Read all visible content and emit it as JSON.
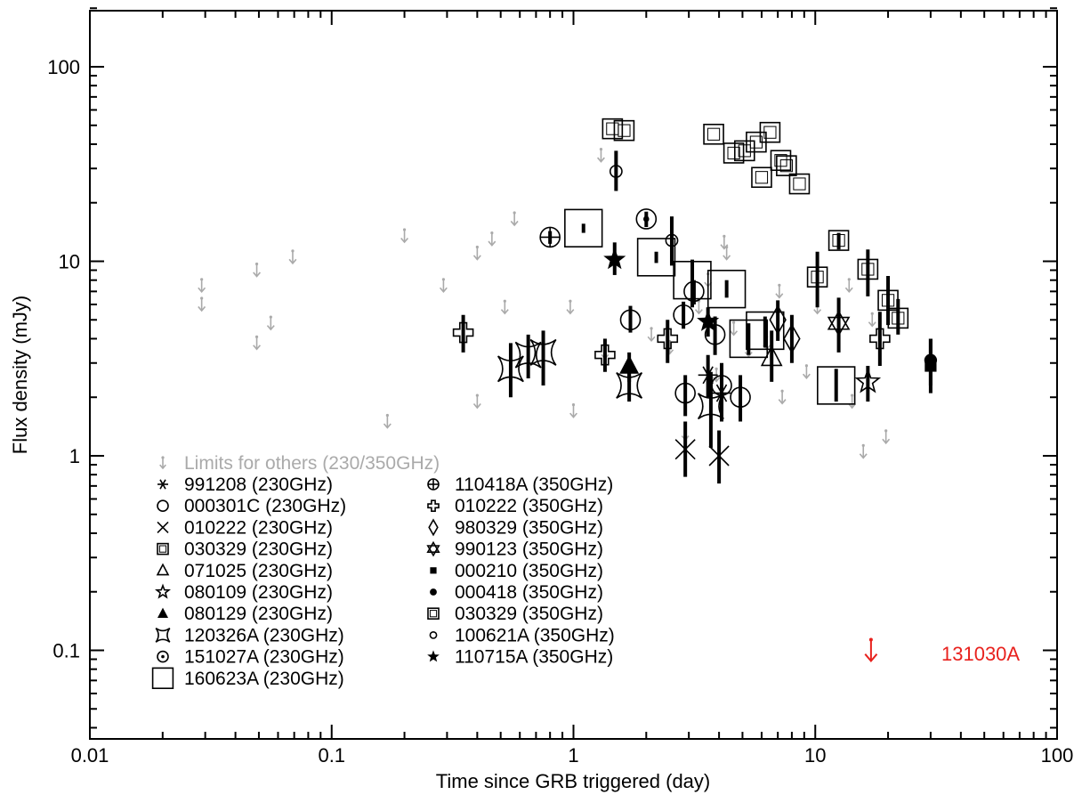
{
  "chart_data": {
    "type": "scatter",
    "xlabel": "Time since GRB triggered (day)",
    "ylabel": "Flux density (mJy)",
    "xscale": "log",
    "yscale": "log",
    "xlim": [
      0.01,
      100
    ],
    "ylim": [
      0.04,
      200
    ],
    "x_tick_labels": [
      "0.01",
      "0.1",
      "1",
      "10",
      "100"
    ],
    "x_tick_values": [
      0.01,
      0.1,
      1,
      10,
      100
    ],
    "y_tick_labels": [
      "0.1",
      "1",
      "10",
      "100"
    ],
    "y_tick_values": [
      0.1,
      1,
      10,
      100
    ],
    "grid": false,
    "legend_position": "bottom-left",
    "colors": {
      "limits": "#aaaaaa",
      "detections": "#000000",
      "highlight": "#e8211d"
    },
    "legend": [
      {
        "label": "991208 (230GHz)",
        "marker": "asterisk-icon"
      },
      {
        "label": "000301C (230GHz)",
        "marker": "circle-icon"
      },
      {
        "label": "010222 (230GHz)",
        "marker": "cross-icon"
      },
      {
        "label": "030329 (230GHz)",
        "marker": "square-icon"
      },
      {
        "label": "071025 (230GHz)",
        "marker": "triangle-icon"
      },
      {
        "label": "080109 (230GHz)",
        "marker": "star-open-icon"
      },
      {
        "label": "080129 (230GHz)",
        "marker": "triangle-filled-icon"
      },
      {
        "label": "120326A (230GHz)",
        "marker": "concave-square-icon"
      },
      {
        "label": "151027A (230GHz)",
        "marker": "circle-dot-icon"
      },
      {
        "label": "160623A (230GHz)",
        "marker": "square-large-icon"
      },
      {
        "label": "110418A (350GHz)",
        "marker": "circle-plus-icon"
      },
      {
        "label": "010222 (350GHz)",
        "marker": "plus-open-icon"
      },
      {
        "label": "980329 (350GHz)",
        "marker": "diamond-icon"
      },
      {
        "label": "990123 (350GHz)",
        "marker": "hexagram-icon"
      },
      {
        "label": "000210 (350GHz)",
        "marker": "square-filled-icon"
      },
      {
        "label": "000418 (350GHz)",
        "marker": "dot-icon"
      },
      {
        "label": "030329 (350GHz)",
        "marker": "square-icon"
      },
      {
        "label": "100621A (350GHz)",
        "marker": "circle-small-icon"
      },
      {
        "label": "110715A (350GHz)",
        "marker": "star-filled-icon"
      }
    ],
    "limits_legend": "Limits for others (230/350GHz)",
    "annotation": "131030A",
    "highlight_limit": {
      "x": 17,
      "y": 0.1
    },
    "upper_limits": [
      {
        "x": 0.029,
        "y": 7.5
      },
      {
        "x": 0.029,
        "y": 6.0
      },
      {
        "x": 0.049,
        "y": 9.0
      },
      {
        "x": 0.049,
        "y": 3.8
      },
      {
        "x": 0.056,
        "y": 4.8
      },
      {
        "x": 0.069,
        "y": 10.5
      },
      {
        "x": 0.17,
        "y": 1.5
      },
      {
        "x": 0.2,
        "y": 13.5
      },
      {
        "x": 0.29,
        "y": 7.5
      },
      {
        "x": 0.4,
        "y": 11.0
      },
      {
        "x": 0.4,
        "y": 1.9
      },
      {
        "x": 0.46,
        "y": 13.0
      },
      {
        "x": 0.52,
        "y": 5.8
      },
      {
        "x": 0.57,
        "y": 16.5
      },
      {
        "x": 0.97,
        "y": 5.8
      },
      {
        "x": 1.0,
        "y": 1.7
      },
      {
        "x": 1.3,
        "y": 35.0
      },
      {
        "x": 1.35,
        "y": 3.4
      },
      {
        "x": 2.1,
        "y": 4.2
      },
      {
        "x": 2.5,
        "y": 3.6
      },
      {
        "x": 2.9,
        "y": 1.3
      },
      {
        "x": 3.3,
        "y": 5.8
      },
      {
        "x": 3.6,
        "y": 8.0
      },
      {
        "x": 3.9,
        "y": 2.6
      },
      {
        "x": 4.2,
        "y": 12.5
      },
      {
        "x": 4.3,
        "y": 11.0
      },
      {
        "x": 4.6,
        "y": 4.5
      },
      {
        "x": 5.3,
        "y": 3.5
      },
      {
        "x": 6.3,
        "y": 3.8
      },
      {
        "x": 7.1,
        "y": 7.0
      },
      {
        "x": 7.3,
        "y": 2.0
      },
      {
        "x": 9.2,
        "y": 2.7
      },
      {
        "x": 10.2,
        "y": 5.8
      },
      {
        "x": 13.8,
        "y": 7.5
      },
      {
        "x": 14.2,
        "y": 1.9
      },
      {
        "x": 15.8,
        "y": 1.05
      },
      {
        "x": 17.2,
        "y": 5.0
      },
      {
        "x": 19.6,
        "y": 1.25
      }
    ],
    "series": [
      {
        "name": "991208 (230GHz)",
        "marker": "asterisk",
        "points": [
          {
            "x": 3.6,
            "y": 2.6,
            "yerr_lo": 2.0,
            "yerr_hi": 3.3
          },
          {
            "x": 4.1,
            "y": 2.1,
            "yerr_lo": 1.5,
            "yerr_hi": 2.8
          }
        ]
      },
      {
        "name": "000301C (230GHz)",
        "marker": "circle",
        "points": [
          {
            "x": 1.72,
            "y": 5.0,
            "yerr_lo": 4.3,
            "yerr_hi": 5.9
          },
          {
            "x": 2.85,
            "y": 5.3,
            "yerr_lo": 4.5,
            "yerr_hi": 6.2
          },
          {
            "x": 2.9,
            "y": 2.1,
            "yerr_lo": 1.6,
            "yerr_hi": 2.6
          },
          {
            "x": 3.85,
            "y": 4.2,
            "yerr_lo": 3.3,
            "yerr_hi": 5.2
          },
          {
            "x": 4.1,
            "y": 2.3,
            "yerr_lo": 1.7,
            "yerr_hi": 3.0
          },
          {
            "x": 4.9,
            "y": 2.0,
            "yerr_lo": 1.5,
            "yerr_hi": 2.6
          },
          {
            "x": 3.15,
            "y": 7.0,
            "yerr_lo": 6.0,
            "yerr_hi": 8.0
          }
        ]
      },
      {
        "name": "010222 (230GHz)",
        "marker": "cross",
        "points": [
          {
            "x": 2.9,
            "y": 1.08,
            "yerr_lo": 0.78,
            "yerr_hi": 1.5
          },
          {
            "x": 4.0,
            "y": 1.0,
            "yerr_lo": 0.72,
            "yerr_hi": 1.35
          }
        ]
      },
      {
        "name": "030329 (230GHz)",
        "marker": "square",
        "points": [
          {
            "x": 1.45,
            "y": 48.0
          },
          {
            "x": 1.62,
            "y": 47.0
          },
          {
            "x": 3.8,
            "y": 45.0
          },
          {
            "x": 4.6,
            "y": 36.0
          },
          {
            "x": 5.1,
            "y": 37.0
          },
          {
            "x": 5.7,
            "y": 41.0
          },
          {
            "x": 6.0,
            "y": 27.0
          },
          {
            "x": 6.5,
            "y": 46.0
          },
          {
            "x": 7.2,
            "y": 33.0
          },
          {
            "x": 7.6,
            "y": 31.0
          },
          {
            "x": 8.6,
            "y": 25.0
          }
        ]
      },
      {
        "name": "071025 (230GHz)",
        "marker": "triangle",
        "points": [
          {
            "x": 6.6,
            "y": 3.2,
            "yerr_lo": 2.4,
            "yerr_hi": 4.4
          }
        ]
      },
      {
        "name": "080109 (230GHz)",
        "marker": "star-open",
        "points": [
          {
            "x": 16.5,
            "y": 2.4,
            "yerr_lo": 1.9,
            "yerr_hi": 2.9
          }
        ]
      },
      {
        "name": "080129 (230GHz)",
        "marker": "triangle-filled",
        "points": [
          {
            "x": 1.7,
            "y": 2.9,
            "yerr_lo": 2.4,
            "yerr_hi": 3.4
          }
        ]
      },
      {
        "name": "120326A (230GHz)",
        "marker": "concave-square",
        "points": [
          {
            "x": 0.55,
            "y": 2.8,
            "yerr_lo": 2.0,
            "yerr_hi": 3.8
          },
          {
            "x": 0.65,
            "y": 3.3,
            "yerr_lo": 2.5,
            "yerr_hi": 4.2
          },
          {
            "x": 0.75,
            "y": 3.4,
            "yerr_lo": 2.3,
            "yerr_hi": 4.4
          },
          {
            "x": 1.7,
            "y": 2.3,
            "yerr_lo": 1.9,
            "yerr_hi": 2.8
          },
          {
            "x": 3.7,
            "y": 1.8,
            "yerr_lo": 1.1,
            "yerr_hi": 2.7
          }
        ]
      },
      {
        "name": "151027A (230GHz)",
        "marker": "circle-dot",
        "points": [
          {
            "x": 2.0,
            "y": 16.5,
            "yerr_lo": 15.0,
            "yerr_hi": 18.0
          }
        ]
      },
      {
        "name": "160623A (230GHz)",
        "marker": "square-large",
        "points": [
          {
            "x": 1.1,
            "y": 14.8,
            "yerr_lo": 14.0,
            "yerr_hi": 15.6
          },
          {
            "x": 2.2,
            "y": 10.5,
            "yerr_lo": 9.8,
            "yerr_hi": 11.2
          },
          {
            "x": 3.1,
            "y": 8.0,
            "yerr_lo": 5.8,
            "yerr_hi": 10.2
          },
          {
            "x": 4.3,
            "y": 7.2,
            "yerr_lo": 6.5,
            "yerr_hi": 8.0
          },
          {
            "x": 5.3,
            "y": 4.0,
            "yerr_lo": 3.3,
            "yerr_hi": 4.8
          },
          {
            "x": 6.2,
            "y": 4.4,
            "yerr_lo": 3.6,
            "yerr_hi": 5.2
          },
          {
            "x": 12.2,
            "y": 2.3,
            "yerr_lo": 1.9,
            "yerr_hi": 2.8
          }
        ]
      },
      {
        "name": "110418A (350GHz)",
        "marker": "circle-plus",
        "points": [
          {
            "x": 0.8,
            "y": 13.3,
            "yerr_lo": 12.3,
            "yerr_hi": 14.3
          }
        ]
      },
      {
        "name": "010222 (350GHz)",
        "marker": "plus-open",
        "points": [
          {
            "x": 0.35,
            "y": 4.3,
            "yerr_lo": 3.4,
            "yerr_hi": 5.3
          },
          {
            "x": 1.35,
            "y": 3.3,
            "yerr_lo": 2.7,
            "yerr_hi": 4.0
          },
          {
            "x": 2.45,
            "y": 4.0,
            "yerr_lo": 3.0,
            "yerr_hi": 5.0
          },
          {
            "x": 18.5,
            "y": 4.0,
            "yerr_lo": 2.9,
            "yerr_hi": 5.5
          }
        ]
      },
      {
        "name": "980329 (350GHz)",
        "marker": "diamond",
        "points": [
          {
            "x": 7.0,
            "y": 5.0,
            "yerr_lo": 3.9,
            "yerr_hi": 6.3
          },
          {
            "x": 8.0,
            "y": 4.0,
            "yerr_lo": 3.0,
            "yerr_hi": 5.3
          }
        ]
      },
      {
        "name": "990123 (350GHz)",
        "marker": "hexagram",
        "points": [
          {
            "x": 12.5,
            "y": 4.8,
            "yerr_lo": 3.4,
            "yerr_hi": 6.5
          }
        ]
      },
      {
        "name": "000210 (350GHz)",
        "marker": "square-filled",
        "points": [
          {
            "x": 30.0,
            "y": 2.9,
            "yerr_lo": 2.1,
            "yerr_hi": 4.0
          }
        ]
      },
      {
        "name": "000418 (350GHz)",
        "marker": "dot",
        "points": [
          {
            "x": 30.0,
            "y": 3.1,
            "yerr_lo": 2.3,
            "yerr_hi": 4.0
          }
        ]
      },
      {
        "name": "030329 (350GHz)",
        "marker": "square",
        "points": [
          {
            "x": 10.2,
            "y": 8.3,
            "yerr_lo": 5.8,
            "yerr_hi": 11.2
          },
          {
            "x": 12.5,
            "y": 12.8,
            "yerr_lo": 11.5,
            "yerr_hi": 14.0
          },
          {
            "x": 16.5,
            "y": 9.1,
            "yerr_lo": 6.6,
            "yerr_hi": 11.5
          },
          {
            "x": 20.0,
            "y": 6.3,
            "yerr_lo": 4.7,
            "yerr_hi": 8.4
          },
          {
            "x": 22.0,
            "y": 5.1,
            "yerr_lo": 4.2,
            "yerr_hi": 6.4
          }
        ]
      },
      {
        "name": "100621A (350GHz)",
        "marker": "circle-small",
        "points": [
          {
            "x": 1.5,
            "y": 29.0,
            "yerr_lo": 23.0,
            "yerr_hi": 37.0
          },
          {
            "x": 2.55,
            "y": 12.8,
            "yerr_lo": 9.5,
            "yerr_hi": 17.0
          }
        ]
      },
      {
        "name": "110715A (350GHz)",
        "marker": "star-filled",
        "points": [
          {
            "x": 1.48,
            "y": 10.2,
            "yerr_lo": 8.5,
            "yerr_hi": 12.5
          },
          {
            "x": 3.6,
            "y": 4.9,
            "yerr_lo": 4.1,
            "yerr_hi": 5.8
          }
        ]
      }
    ]
  }
}
